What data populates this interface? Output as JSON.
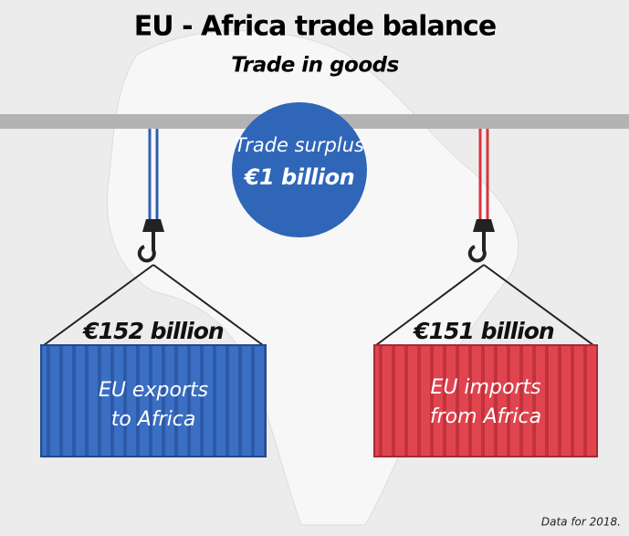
{
  "header": {
    "title": "EU - Africa trade balance",
    "subtitle": "Trade in goods"
  },
  "surplus": {
    "label": "Trade surplus",
    "value": "€1 billion"
  },
  "exports": {
    "value": "€152 billion",
    "label_lines": [
      "EU exports",
      "to Africa"
    ]
  },
  "imports": {
    "value": "€151 billion",
    "label_lines": [
      "EU imports",
      "from Africa"
    ]
  },
  "footnote": "Data for 2018."
}
